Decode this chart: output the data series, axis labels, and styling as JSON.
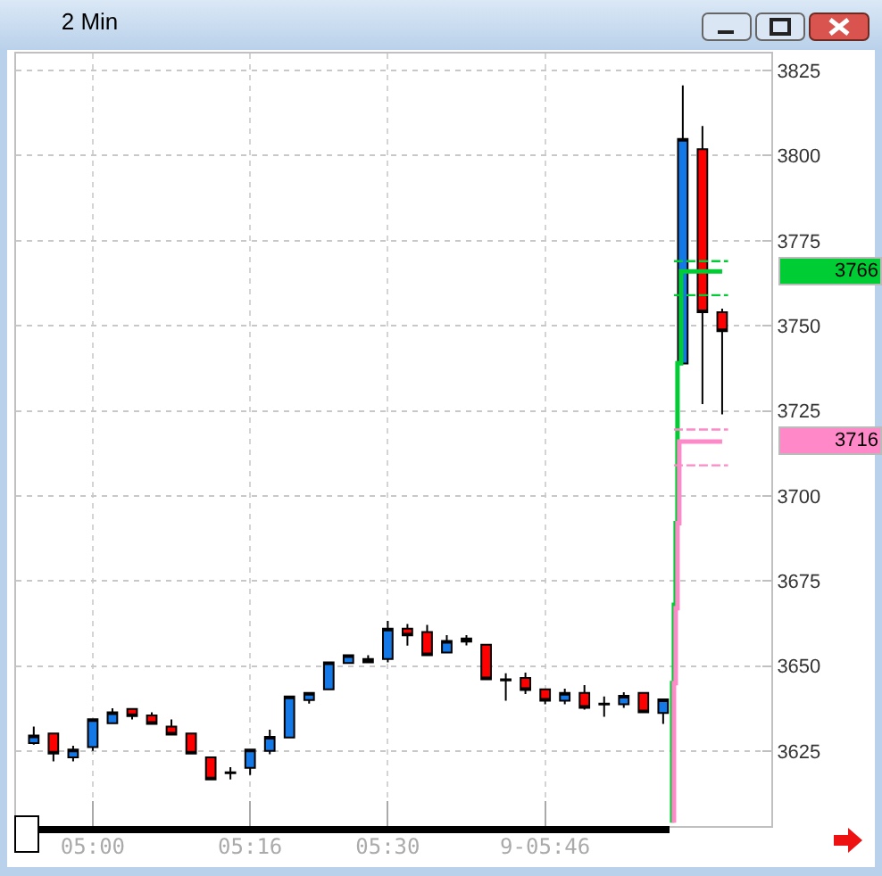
{
  "chart_data": {
    "type": "candlestick",
    "title": "2 Min",
    "x": [
      4.9,
      4.9333,
      4.9667,
      5.0,
      5.0333,
      5.0667,
      5.1,
      5.1333,
      5.1667,
      5.2,
      5.2333,
      5.2667,
      5.3,
      5.3333,
      5.3667,
      5.4,
      5.4333,
      5.4667,
      5.5,
      5.5333,
      5.5667,
      5.6,
      5.6333,
      5.6667,
      5.7,
      5.7333,
      5.7667,
      5.8,
      5.8333,
      5.8667,
      5.9,
      5.9333,
      5.9667,
      6.0,
      6.0333,
      6.0667
    ],
    "ohlc": [
      [
        3627.4,
        3632.2,
        3626.9,
        3629.6
      ],
      [
        3630.2,
        3630.2,
        3622.0,
        3624.3
      ],
      [
        3623.2,
        3626.6,
        3622.0,
        3625.5
      ],
      [
        3626.2,
        3634.4,
        3625.1,
        3634.4
      ],
      [
        3633.2,
        3637.6,
        3633.2,
        3636.4
      ],
      [
        3637.4,
        3637.4,
        3634.3,
        3635.3
      ],
      [
        3635.5,
        3636.4,
        3633.0,
        3633.0
      ],
      [
        3632.2,
        3634.3,
        3629.9,
        3629.9
      ],
      [
        3630.2,
        3630.2,
        3624.3,
        3624.3
      ],
      [
        3623.2,
        3623.2,
        3616.7,
        3616.7
      ],
      [
        3618.8,
        3620.3,
        3616.7,
        3618.5
      ],
      [
        3620.1,
        3625.5,
        3618.0,
        3625.5
      ],
      [
        3625.1,
        3631.3,
        3624.1,
        3629.2
      ],
      [
        3629.0,
        3641.1,
        3629.0,
        3641.1
      ],
      [
        3640.0,
        3642.1,
        3639.0,
        3642.1
      ],
      [
        3643.2,
        3651.1,
        3643.2,
        3651.1
      ],
      [
        3650.9,
        3653.2,
        3650.9,
        3653.2
      ],
      [
        3652.1,
        3653.2,
        3651.1,
        3651.1
      ],
      [
        3652.1,
        3663.3,
        3651.1,
        3661.0
      ],
      [
        3661.0,
        3662.4,
        3656.0,
        3659.0
      ],
      [
        3660.0,
        3662.1,
        3653.2,
        3653.2
      ],
      [
        3654.0,
        3659.1,
        3654.0,
        3657.4
      ],
      [
        3658.1,
        3659.1,
        3656.1,
        3657.2
      ],
      [
        3656.3,
        3656.3,
        3646.1,
        3646.1
      ],
      [
        3646.1,
        3647.9,
        3639.8,
        3645.8
      ],
      [
        3646.5,
        3648.1,
        3641.8,
        3643.0
      ],
      [
        3643.2,
        3643.2,
        3638.8,
        3639.8
      ],
      [
        3639.8,
        3643.4,
        3638.8,
        3642.1
      ],
      [
        3642.1,
        3644.4,
        3637.2,
        3637.7
      ],
      [
        3639.0,
        3641.1,
        3635.1,
        3638.7
      ],
      [
        3638.8,
        3642.3,
        3637.7,
        3641.3
      ],
      [
        3642.1,
        3642.1,
        3636.4,
        3636.4
      ],
      [
        3636.2,
        3640.2,
        3633.0,
        3640.2
      ],
      [
        3738.9,
        3820.6,
        3738.9,
        3804.9
      ],
      [
        3801.9,
        3808.7,
        3727.0,
        3754.0
      ],
      [
        3754.0,
        3755.0,
        3724.0,
        3748.4
      ]
    ],
    "colors": [
      "#1478e6",
      "#ff0000",
      "#1478e6",
      "#1478e6",
      "#1478e6",
      "#ff0000",
      "#ff0000",
      "#ff0000",
      "#ff0000",
      "#ff0000",
      "#000000",
      "#1478e6",
      "#1478e6",
      "#1478e6",
      "#1478e6",
      "#1478e6",
      "#1478e6",
      "#ff0000",
      "#1478e6",
      "#ff0000",
      "#ff0000",
      "#1478e6",
      "#ff0000",
      "#ff0000",
      "#000000",
      "#ff0000",
      "#ff0000",
      "#1478e6",
      "#ff0000",
      "#000000",
      "#1478e6",
      "#ff0000",
      "#1478e6",
      "#1478e6",
      "#ff0000",
      "#ff0000"
    ],
    "series": [
      {
        "type": "step",
        "color": "#00cc33",
        "x": [
          5.982,
          5.982,
          5.985,
          5.988,
          5.991,
          5.997,
          6.0,
          6.0667
        ],
        "values": [
          3604,
          3621,
          3645,
          3668,
          3692,
          3739,
          3766,
          3766
        ]
      },
      {
        "type": "step",
        "color": "#ff88c8",
        "x": [
          5.985,
          5.985,
          5.988,
          5.991,
          5.994,
          5.997,
          6.0,
          6.0667
        ],
        "values": [
          3604,
          3620,
          3645,
          3667,
          3692,
          3716,
          3716,
          3716
        ]
      },
      {
        "type": "line",
        "line_style": "dashed",
        "color": "#00cc33",
        "x": [
          5.985,
          6.0767
        ],
        "values": [
          3769,
          3769
        ]
      },
      {
        "type": "line",
        "line_style": "dashed",
        "color": "#00cc33",
        "x": [
          5.985,
          6.0767
        ],
        "values": [
          3759,
          3759
        ]
      },
      {
        "type": "line",
        "line_style": "dashed",
        "color": "#ff88c8",
        "x": [
          5.985,
          6.0767
        ],
        "values": [
          3719.5,
          3719.5
        ]
      },
      {
        "type": "line",
        "line_style": "dashed",
        "color": "#ff88c8",
        "x": [
          5.985,
          6.0767
        ],
        "values": [
          3709,
          3709
        ]
      }
    ],
    "annotations": [
      "3766",
      "3716"
    ],
    "xlim": [
      4.87,
      6.15
    ],
    "xticks": [
      {
        "value": 5.0,
        "label": "05:00"
      },
      {
        "value": 5.2667,
        "label": "05:16"
      },
      {
        "value": 5.5,
        "label": "05:30"
      },
      {
        "value": 5.7667,
        "label": "9-05:46"
      }
    ],
    "ylim": [
      3603,
      3830
    ],
    "yticks": [
      3625,
      3650,
      3675,
      3700,
      3725,
      3750,
      3775,
      3800,
      3825
    ],
    "grid": true
  }
}
